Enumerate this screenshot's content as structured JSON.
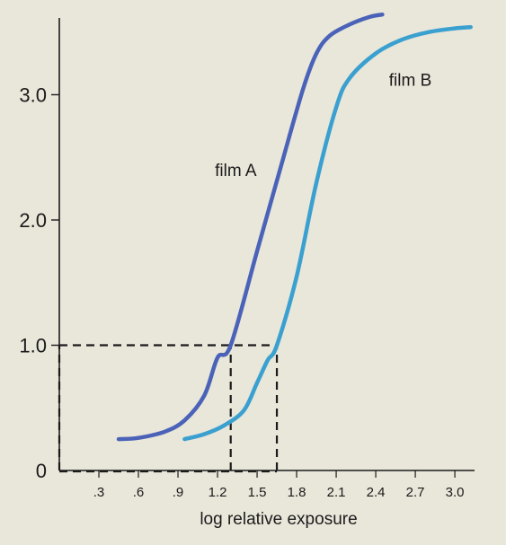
{
  "chart_data": {
    "type": "line",
    "title": "",
    "xlabel": "log relative exposure",
    "ylabel": "",
    "x_ticks": [
      ".3",
      ".6",
      ".9",
      "1.2",
      "1.5",
      "1.8",
      "2.1",
      "2.4",
      "2.7",
      "3.0"
    ],
    "y_ticks": [
      "0",
      "1.0",
      "2.0",
      "3.0"
    ],
    "xlim": [
      0,
      3.3
    ],
    "ylim": [
      0,
      3.6
    ],
    "grid": false,
    "legend": "none",
    "series": [
      {
        "name": "film A",
        "color": "#4a63b8",
        "points": [
          [
            0.45,
            0.25
          ],
          [
            0.6,
            0.26
          ],
          [
            0.8,
            0.31
          ],
          [
            0.95,
            0.4
          ],
          [
            1.1,
            0.6
          ],
          [
            1.2,
            0.9
          ],
          [
            1.3,
            1.0
          ],
          [
            1.5,
            1.75
          ],
          [
            1.7,
            2.5
          ],
          [
            1.85,
            3.05
          ],
          [
            1.95,
            3.33
          ],
          [
            2.05,
            3.47
          ],
          [
            2.2,
            3.56
          ],
          [
            2.35,
            3.62
          ],
          [
            2.45,
            3.64
          ]
        ]
      },
      {
        "name": "film B",
        "color": "#3aa0d0",
        "points": [
          [
            0.95,
            0.25
          ],
          [
            1.1,
            0.29
          ],
          [
            1.25,
            0.36
          ],
          [
            1.4,
            0.48
          ],
          [
            1.5,
            0.7
          ],
          [
            1.58,
            0.88
          ],
          [
            1.65,
            1.0
          ],
          [
            1.8,
            1.55
          ],
          [
            1.95,
            2.3
          ],
          [
            2.1,
            2.9
          ],
          [
            2.2,
            3.13
          ],
          [
            2.4,
            3.33
          ],
          [
            2.6,
            3.44
          ],
          [
            2.8,
            3.5
          ],
          [
            3.0,
            3.53
          ],
          [
            3.12,
            3.54
          ]
        ]
      }
    ],
    "reference_lines": [
      {
        "from": [
          0,
          1.0
        ],
        "to": [
          1.65,
          1.0
        ]
      },
      {
        "from": [
          1.3,
          0
        ],
        "to": [
          1.3,
          1.0
        ]
      },
      {
        "from": [
          1.65,
          0
        ],
        "to": [
          1.65,
          1.0
        ]
      },
      {
        "from": [
          0,
          0
        ],
        "to": [
          0,
          1.0
        ]
      }
    ]
  }
}
